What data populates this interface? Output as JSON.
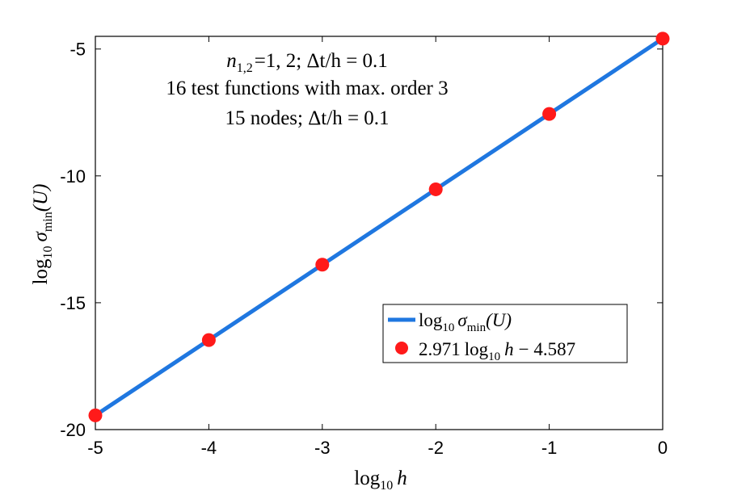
{
  "chart_data": {
    "type": "line",
    "title": "",
    "xlabel": {
      "base": "log",
      "sub": "10",
      "var": "h"
    },
    "ylabel": {
      "base": "log",
      "sub": "10",
      "sigma": "σ",
      "sigma_sub": "min",
      "arg": "(U)"
    },
    "xlim": [
      -5,
      0
    ],
    "ylim": [
      -20,
      -4.5
    ],
    "xticks": [
      -5,
      -4,
      -3,
      -2,
      -1,
      0
    ],
    "yticks": [
      -5,
      -10,
      -15,
      -20
    ],
    "xtick_labels": [
      "-5",
      "-4",
      "-3",
      "-2",
      "-1",
      "0"
    ],
    "ytick_labels": [
      "-5",
      "-10",
      "-15",
      "-20"
    ],
    "grid": false,
    "legend_position": "lower-right",
    "series": [
      {
        "name": "log10 σmin(U)",
        "kind": "line",
        "color": "#1f77e0",
        "x": [
          -5,
          -4,
          -3,
          -2,
          -1,
          0
        ],
        "y": [
          -19.44,
          -16.47,
          -13.5,
          -10.53,
          -7.56,
          -4.59
        ]
      },
      {
        "name": "2.971 log10 h − 4.587",
        "kind": "scatter",
        "color": "#ff1a1a",
        "x": [
          -5,
          -4,
          -3,
          -2,
          -1,
          0
        ],
        "y": [
          -19.44,
          -16.47,
          -13.5,
          -10.53,
          -7.56,
          -4.59
        ]
      }
    ],
    "legend": {
      "line_entry": {
        "base": "log",
        "sub": "10",
        "sigma": "σ",
        "sigma_sub": "min",
        "arg": "(U)"
      },
      "marker_entry": {
        "coef": "2.971",
        "base": "log",
        "sub": "10",
        "var": "h",
        "rest": "− 4.587"
      }
    },
    "annotations": {
      "line1": {
        "var": "n",
        "sub": "1,2",
        "text": "=1, 2; Δt/h = 0.1"
      },
      "line2": "16 test functions with max. order 3",
      "line3": "15 nodes; Δt/h = 0.1"
    }
  }
}
